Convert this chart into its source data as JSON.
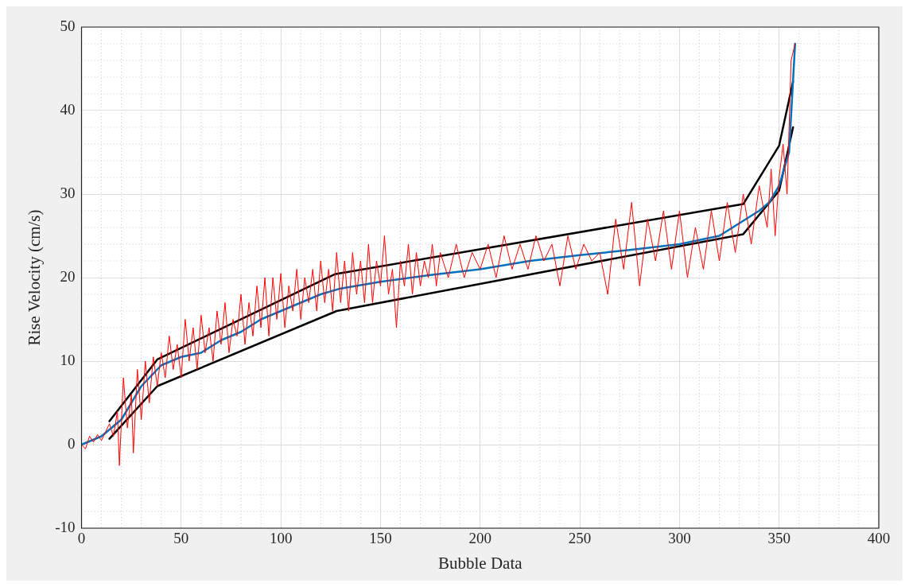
{
  "chart_data": {
    "type": "line",
    "xlabel": "Bubble Data",
    "ylabel": "Rise Velocity (cm/s)",
    "xlim": [
      0,
      400
    ],
    "xticks": [
      0,
      50,
      100,
      150,
      200,
      250,
      300,
      350,
      400
    ],
    "ylim": [
      -10,
      50
    ],
    "yticks": [
      -10,
      0,
      10,
      20,
      30,
      40,
      50
    ],
    "grid": true,
    "legend": false,
    "marker": "none",
    "line_style": "solid",
    "series": [
      {
        "color": "#ff0000",
        "x": [
          0,
          2,
          4,
          6,
          8,
          10,
          12,
          14,
          16,
          18,
          19,
          21,
          23,
          25,
          26,
          28,
          30,
          32,
          34,
          36,
          38,
          40,
          42,
          44,
          46,
          48,
          50,
          52,
          54,
          56,
          58,
          60,
          62,
          64,
          66,
          68,
          70,
          72,
          74,
          76,
          78,
          80,
          82,
          84,
          86,
          88,
          90,
          92,
          94,
          96,
          98,
          100,
          102,
          104,
          106,
          108,
          110,
          112,
          114,
          116,
          118,
          120,
          122,
          124,
          126,
          128,
          130,
          132,
          134,
          136,
          138,
          140,
          142,
          144,
          146,
          148,
          150,
          152,
          154,
          156,
          158,
          160,
          162,
          164,
          166,
          168,
          170,
          172,
          174,
          176,
          178,
          180,
          184,
          188,
          192,
          196,
          200,
          204,
          208,
          212,
          216,
          220,
          224,
          228,
          232,
          236,
          240,
          244,
          248,
          252,
          256,
          260,
          264,
          268,
          272,
          276,
          280,
          284,
          288,
          292,
          296,
          300,
          304,
          308,
          312,
          316,
          320,
          324,
          328,
          332,
          336,
          340,
          344,
          346,
          348,
          350,
          352,
          354,
          356,
          358
        ],
        "values": [
          0,
          -0.5,
          1,
          0.3,
          1.2,
          0.5,
          1.5,
          2.5,
          1,
          4,
          -2.5,
          8,
          2,
          6,
          -1,
          9,
          3,
          10,
          5,
          10.5,
          7,
          11,
          8,
          13,
          9,
          12,
          8,
          15,
          10,
          14,
          9,
          15.5,
          11,
          14,
          10,
          16,
          12,
          17,
          11,
          15,
          13,
          18,
          12,
          17,
          13,
          19,
          14,
          20,
          13,
          20,
          15,
          20.5,
          14,
          19,
          16,
          21,
          15,
          20,
          17,
          21,
          16,
          22,
          17,
          21,
          16,
          23,
          17,
          22,
          16,
          23,
          18,
          22,
          17,
          24,
          17,
          22,
          19,
          25,
          18,
          21,
          14,
          22,
          19,
          24,
          18,
          23,
          19,
          22,
          20,
          24,
          19,
          23,
          20,
          24,
          20,
          23,
          21,
          24,
          20,
          25,
          21,
          24,
          21,
          25,
          22,
          24,
          19,
          25,
          21,
          24,
          22,
          23,
          18,
          27,
          21,
          29,
          19,
          27,
          22,
          28,
          21,
          28,
          20,
          26,
          21,
          28,
          22,
          29,
          23,
          30,
          24,
          31,
          26,
          33,
          25,
          32,
          36,
          30,
          46,
          48
        ]
      },
      {
        "color": "#0072bd",
        "x": [
          0,
          10,
          20,
          30,
          40,
          50,
          60,
          70,
          80,
          90,
          100,
          110,
          120,
          130,
          150,
          175,
          200,
          225,
          250,
          275,
          300,
          320,
          330,
          340,
          345,
          350,
          355,
          358
        ],
        "values": [
          0,
          1,
          3,
          7,
          9.5,
          10.5,
          11,
          12.5,
          13.5,
          15,
          16,
          17,
          18,
          18.7,
          19.5,
          20.3,
          21,
          22,
          22.7,
          23.3,
          24,
          25,
          26.5,
          28,
          29,
          31,
          35,
          48
        ]
      },
      {
        "color": "#000000",
        "x": [
          14,
          38,
          127,
          332,
          350,
          357
        ],
        "values": [
          2.8,
          10.2,
          20.4,
          28.8,
          35.8,
          43.5
        ]
      },
      {
        "color": "#000000",
        "x": [
          14,
          38,
          128,
          332,
          350,
          357
        ],
        "values": [
          0.7,
          7,
          16,
          25.2,
          30.4,
          38
        ]
      }
    ]
  }
}
